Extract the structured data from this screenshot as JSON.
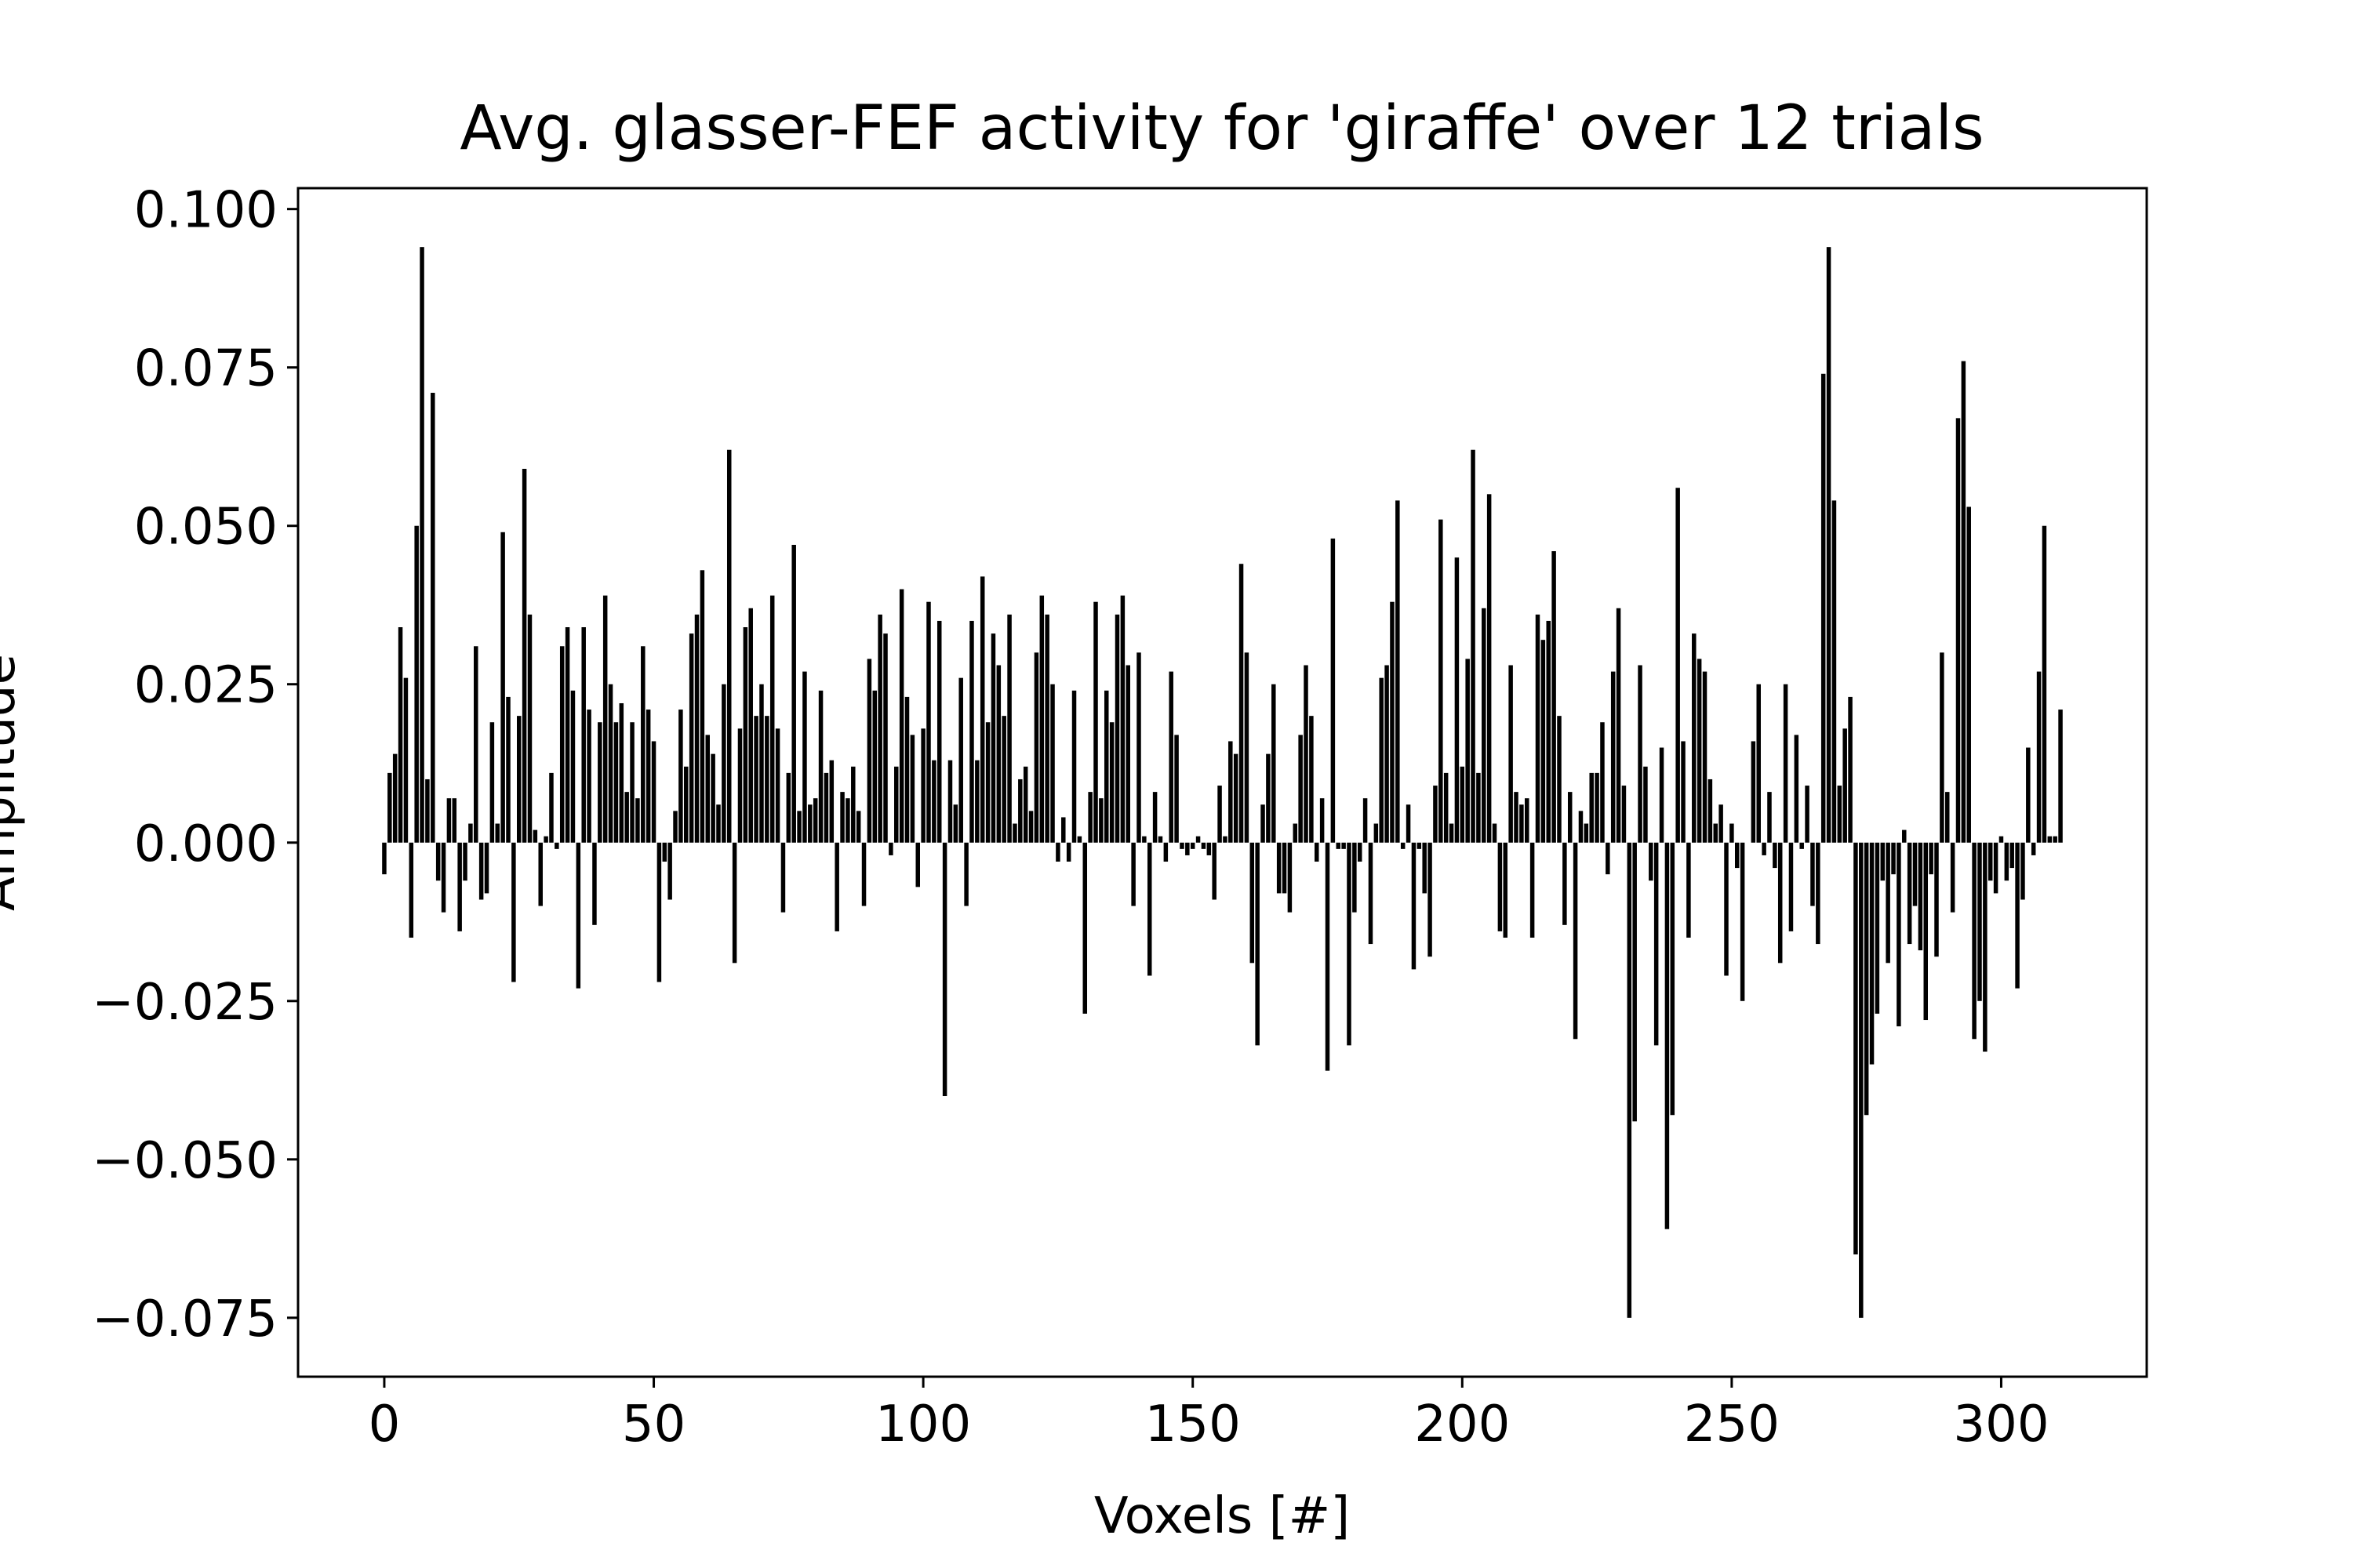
{
  "chart_data": {
    "type": "bar",
    "title": "Avg. glasser-FEF activity for 'giraffe' over 12 trials",
    "xlabel": "Voxels [#]",
    "ylabel": "Amplitude",
    "color": "#000000",
    "xlim": [
      -16,
      327
    ],
    "ylim": [
      -0.0843,
      0.1033
    ],
    "xticks": [
      0,
      50,
      100,
      150,
      200,
      250,
      300
    ],
    "yticks": [
      {
        "value": -0.075,
        "label": "−0.075"
      },
      {
        "value": -0.05,
        "label": "−0.050"
      },
      {
        "value": -0.025,
        "label": "−0.025"
      },
      {
        "value": 0,
        "label": "0.000"
      },
      0.025,
      {
        "value": 0.05,
        "label": "0.050"
      },
      0.075,
      {
        "value": 0.1,
        "label": "0.100"
      }
    ],
    "x": [
      0,
      1,
      2,
      3,
      4,
      5,
      6,
      7,
      8,
      9,
      10,
      11,
      12,
      13,
      14,
      15,
      16,
      17,
      18,
      19,
      20,
      21,
      22,
      23,
      24,
      25,
      26,
      27,
      28,
      29,
      30,
      31,
      32,
      33,
      34,
      35,
      36,
      37,
      38,
      39,
      40,
      41,
      42,
      43,
      44,
      45,
      46,
      47,
      48,
      49,
      50,
      51,
      52,
      53,
      54,
      55,
      56,
      57,
      58,
      59,
      60,
      61,
      62,
      63,
      64,
      65,
      66,
      67,
      68,
      69,
      70,
      71,
      72,
      73,
      74,
      75,
      76,
      77,
      78,
      79,
      80,
      81,
      82,
      83,
      84,
      85,
      86,
      87,
      88,
      89,
      90,
      91,
      92,
      93,
      94,
      95,
      96,
      97,
      98,
      99,
      100,
      101,
      102,
      103,
      104,
      105,
      106,
      107,
      108,
      109,
      110,
      111,
      112,
      113,
      114,
      115,
      116,
      117,
      118,
      119,
      120,
      121,
      122,
      123,
      124,
      125,
      126,
      127,
      128,
      129,
      130,
      131,
      132,
      133,
      134,
      135,
      136,
      137,
      138,
      139,
      140,
      141,
      142,
      143,
      144,
      145,
      146,
      147,
      148,
      149,
      150,
      151,
      152,
      153,
      154,
      155,
      156,
      157,
      158,
      159,
      160,
      161,
      162,
      163,
      164,
      165,
      166,
      167,
      168,
      169,
      170,
      171,
      172,
      173,
      174,
      175,
      176,
      177,
      178,
      179,
      180,
      181,
      182,
      183,
      184,
      185,
      186,
      187,
      188,
      189,
      190,
      191,
      192,
      193,
      194,
      195,
      196,
      197,
      198,
      199,
      200,
      201,
      202,
      203,
      204,
      205,
      206,
      207,
      208,
      209,
      210,
      211,
      212,
      213,
      214,
      215,
      216,
      217,
      218,
      219,
      220,
      221,
      222,
      223,
      224,
      225,
      226,
      227,
      228,
      229,
      230,
      231,
      232,
      233,
      234,
      235,
      236,
      237,
      238,
      239,
      240,
      241,
      242,
      243,
      244,
      245,
      246,
      247,
      248,
      249,
      250,
      251,
      252,
      253,
      254,
      255,
      256,
      257,
      258,
      259,
      260,
      261,
      262,
      263,
      264,
      265,
      266,
      267,
      268,
      269,
      270,
      271,
      272,
      273,
      274,
      275,
      276,
      277,
      278,
      279,
      280,
      281,
      282,
      283,
      284,
      285,
      286,
      287,
      288,
      289,
      290,
      291,
      292,
      293,
      294,
      295,
      296,
      297,
      298,
      299,
      300,
      301,
      302,
      303,
      304,
      305,
      306,
      307,
      308,
      309,
      310,
      311
    ],
    "values": [
      -0.005,
      0.011,
      0.014,
      0.034,
      0.026,
      -0.015,
      0.05,
      0.094,
      0.01,
      0.071,
      -0.006,
      -0.011,
      0.007,
      0.007,
      -0.014,
      -0.006,
      0.003,
      0.031,
      -0.009,
      -0.008,
      0.019,
      0.003,
      0.049,
      0.023,
      -0.022,
      0.02,
      0.059,
      0.036,
      0.002,
      -0.01,
      0.001,
      0.011,
      -0.001,
      0.031,
      0.034,
      0.024,
      -0.023,
      0.034,
      0.021,
      -0.013,
      0.019,
      0.039,
      0.025,
      0.019,
      0.022,
      0.008,
      0.019,
      0.007,
      0.031,
      0.021,
      0.016,
      -0.022,
      -0.003,
      -0.009,
      0.005,
      0.021,
      0.012,
      0.033,
      0.036,
      0.043,
      0.017,
      0.014,
      0.006,
      0.025,
      0.062,
      -0.019,
      0.018,
      0.034,
      0.037,
      0.02,
      0.025,
      0.02,
      0.039,
      0.018,
      -0.011,
      0.011,
      0.047,
      0.005,
      0.027,
      0.006,
      0.007,
      0.024,
      0.011,
      0.013,
      -0.014,
      0.008,
      0.007,
      0.012,
      0.005,
      -0.01,
      0.029,
      0.024,
      0.036,
      0.033,
      -0.002,
      0.012,
      0.04,
      0.023,
      0.017,
      -0.007,
      0.018,
      0.038,
      0.013,
      0.035,
      -0.04,
      0.013,
      0.006,
      0.026,
      -0.01,
      0.035,
      0.013,
      0.042,
      0.019,
      0.033,
      0.028,
      0.02,
      0.036,
      0.003,
      0.01,
      0.012,
      0.005,
      0.03,
      0.039,
      0.036,
      0.025,
      -0.003,
      0.004,
      -0.003,
      0.024,
      0.001,
      -0.027,
      0.008,
      0.038,
      0.007,
      0.024,
      0.019,
      0.036,
      0.039,
      0.028,
      -0.01,
      0.03,
      0.001,
      -0.021,
      0.008,
      0.001,
      -0.003,
      0.027,
      0.017,
      -0.001,
      -0.002,
      -0.001,
      0.001,
      -0.001,
      -0.002,
      -0.009,
      0.009,
      0.001,
      0.016,
      0.014,
      0.044,
      0.03,
      -0.019,
      -0.032,
      0.006,
      0.014,
      0.025,
      -0.008,
      -0.008,
      -0.011,
      0.003,
      0.017,
      0.028,
      0.02,
      -0.003,
      0.007,
      -0.036,
      0.048,
      -0.001,
      -0.001,
      -0.032,
      -0.011,
      -0.003,
      0.007,
      -0.016,
      0.003,
      0.026,
      0.028,
      0.038,
      0.054,
      -0.001,
      0.006,
      -0.02,
      -0.001,
      -0.008,
      -0.018,
      0.009,
      0.051,
      0.011,
      0.003,
      0.045,
      0.012,
      0.029,
      0.062,
      0.011,
      0.037,
      0.055,
      0.003,
      -0.014,
      -0.015,
      0.028,
      0.008,
      0.006,
      0.007,
      -0.015,
      0.036,
      0.032,
      0.035,
      0.046,
      0.02,
      -0.013,
      0.008,
      -0.031,
      0.005,
      0.003,
      0.011,
      0.011,
      0.019,
      -0.005,
      0.027,
      0.037,
      0.009,
      -0.075,
      -0.044,
      0.028,
      0.012,
      -0.006,
      -0.032,
      0.015,
      -0.061,
      -0.043,
      0.056,
      0.016,
      -0.015,
      0.033,
      0.029,
      0.027,
      0.01,
      0.003,
      0.006,
      -0.021,
      0.003,
      -0.004,
      -0.025,
      0.0,
      0.016,
      0.025,
      -0.002,
      0.008,
      -0.004,
      -0.019,
      0.025,
      -0.014,
      0.017,
      -0.001,
      0.009,
      -0.01,
      -0.016,
      0.074,
      0.094,
      0.054,
      0.009,
      0.018,
      0.023,
      -0.065,
      -0.075,
      -0.043,
      -0.035,
      -0.027,
      -0.006,
      -0.019,
      -0.005,
      -0.029,
      0.002,
      -0.016,
      -0.01,
      -0.017,
      -0.028,
      -0.005,
      -0.018,
      0.03,
      0.008,
      -0.011,
      0.067,
      0.076,
      0.053,
      -0.031,
      -0.025,
      -0.033,
      -0.006,
      -0.008,
      0.001,
      -0.006,
      -0.004,
      -0.023,
      -0.009,
      0.015,
      -0.002,
      0.027,
      0.05,
      0.001,
      0.001,
      0.021
    ]
  }
}
